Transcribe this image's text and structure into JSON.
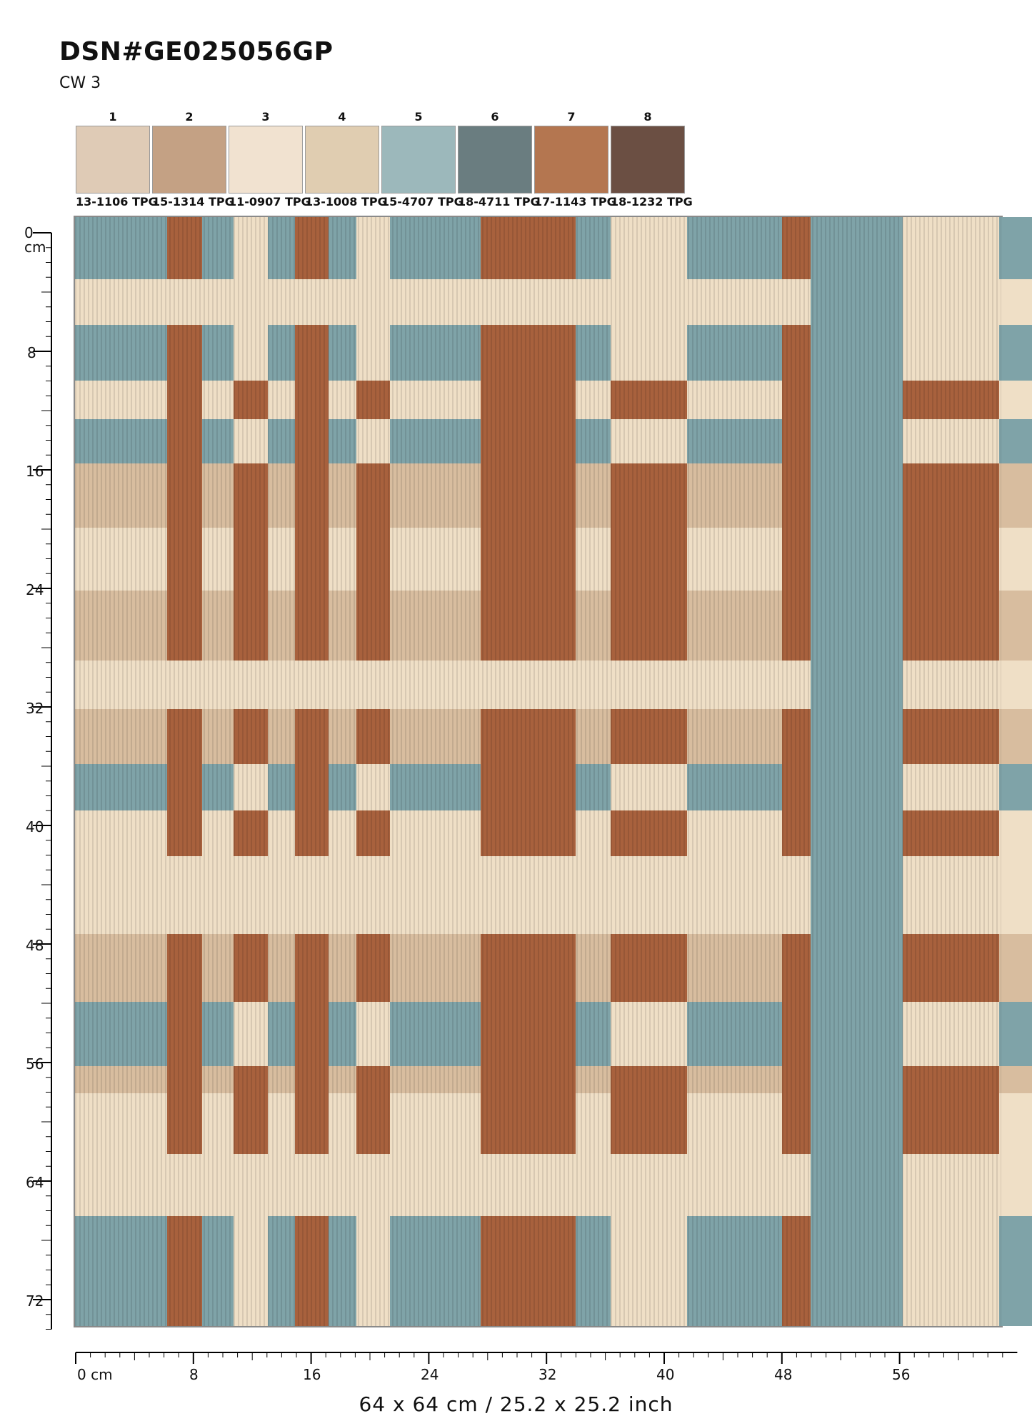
{
  "title": "DSN#GE025056GP",
  "colorway": "CW 3",
  "swatches": [
    {
      "num": "1",
      "color": "#dfcbb6",
      "code": "13-1106 TPG"
    },
    {
      "num": "2",
      "color": "#c4a184",
      "code": "15-1314 TPG"
    },
    {
      "num": "3",
      "color": "#f1e2d0",
      "code": "11-0907 TPG"
    },
    {
      "num": "4",
      "color": "#e0cdb1",
      "code": "13-1008 TPG"
    },
    {
      "num": "5",
      "color": "#9cb8bb",
      "code": "15-4707 TPG"
    },
    {
      "num": "6",
      "color": "#6a7d80",
      "code": "18-4711 TPG"
    },
    {
      "num": "7",
      "color": "#b47650",
      "code": "17-1143 TPG"
    },
    {
      "num": "8",
      "color": "#6b4f43",
      "code": "18-1232 TPG"
    }
  ],
  "ruler_left": {
    "labels": [
      "0",
      "8",
      "16",
      "24",
      "32",
      "40",
      "48",
      "56",
      "64",
      "72"
    ],
    "unit": "cm"
  },
  "ruler_bottom": {
    "labels": [
      "0 cm",
      "8",
      "16",
      "24",
      "32",
      "40",
      "48",
      "56"
    ]
  },
  "size_label": "64 x 64 cm / 25.2 x 25.2 inch",
  "pattern_colors": {
    "blue": "#7fa3a8",
    "rust": "#a8613d",
    "cream": "#efdfc6",
    "tan": "#d8bd9f"
  }
}
